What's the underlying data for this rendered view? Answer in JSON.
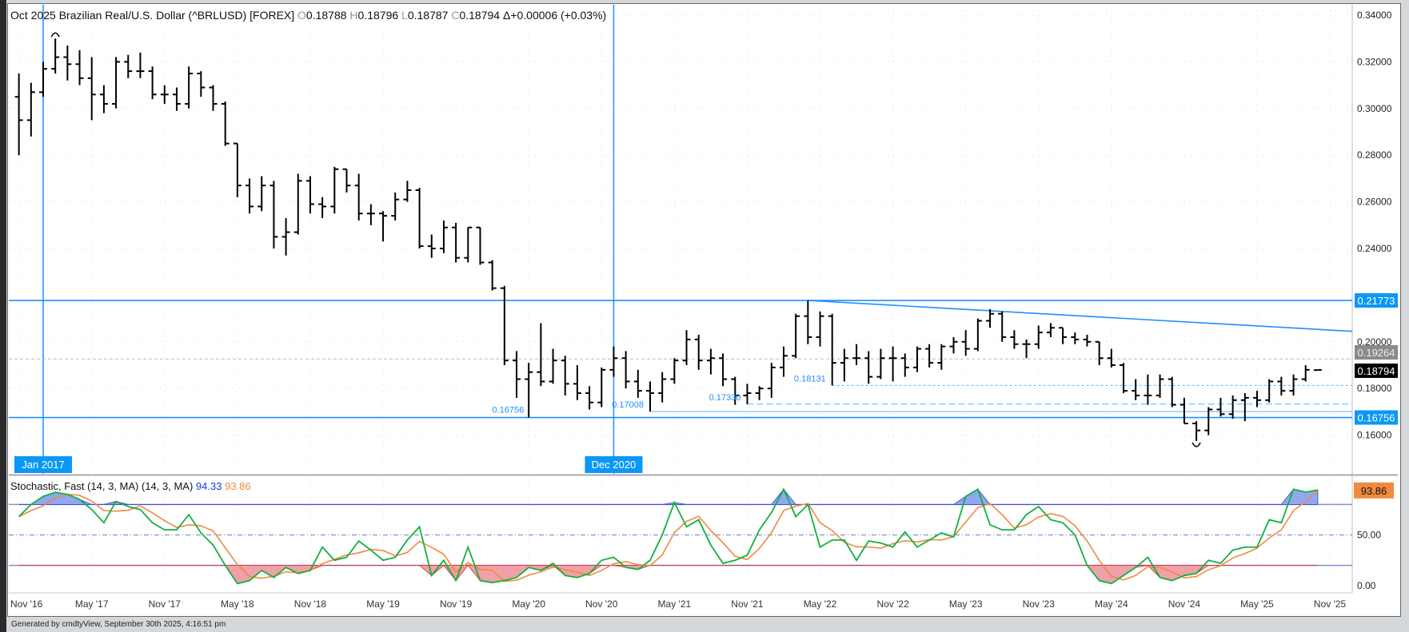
{
  "header": {
    "period": "Oct 2025",
    "instrument": "Brazilian Real/U.S. Dollar (^BRLUSD) [FOREX]",
    "o_key": "O",
    "open": "0.18788",
    "h_key": "H",
    "high": "0.18796",
    "l_key": "L",
    "low": "0.18787",
    "c_key": "C",
    "close": "0.18794",
    "change": "Δ+0.00006 (+0.03%)"
  },
  "stoch_header": {
    "label": "Stochastic, Fast (14, 3, MA) (14, 3, MA)",
    "k_value": "94.33",
    "d_value": "93.86"
  },
  "footer": "Generated by cmdtyView, September 30th 2025, 4:16:51 pm",
  "colors": {
    "blue": "#1e90ff",
    "k_line": "#13b040",
    "d_line": "#f08a40",
    "overbought_fill": "#8fa8f0",
    "oversold_fill": "#f0a0a8",
    "band": "#8c8cd0"
  },
  "chart_data": [
    {
      "type": "ohlc",
      "title": "Brazilian Real/U.S. Dollar (^BRLUSD) monthly",
      "ylim": [
        0.15,
        0.345
      ],
      "yticks": [
        "0.34000",
        "0.32000",
        "0.30000",
        "0.28000",
        "0.26000",
        "0.24000",
        "0.20000",
        "0.18000",
        "0.16000"
      ],
      "start_month": "Nov 2016",
      "x_labels": [
        {
          "m": -2,
          "t": "Nov '16"
        },
        {
          "m": 4,
          "t": "May '17"
        },
        {
          "m": 10,
          "t": "Nov '17"
        },
        {
          "m": 16,
          "t": "May '18"
        },
        {
          "m": 22,
          "t": "Nov '18"
        },
        {
          "m": 28,
          "t": "May '19"
        },
        {
          "m": 34,
          "t": "Nov '19"
        },
        {
          "m": 40,
          "t": "May '20"
        },
        {
          "m": 46,
          "t": "Nov '20"
        },
        {
          "m": 52,
          "t": "May '21"
        },
        {
          "m": 58,
          "t": "Nov '21"
        },
        {
          "m": 64,
          "t": "May '22"
        },
        {
          "m": 70,
          "t": "Nov '22"
        },
        {
          "m": 76,
          "t": "May '23"
        },
        {
          "m": 82,
          "t": "Nov '23"
        },
        {
          "m": 88,
          "t": "May '24"
        },
        {
          "m": 94,
          "t": "Nov '24"
        },
        {
          "m": 100,
          "t": "May '25"
        },
        {
          "m": 106,
          "t": "Nov '25"
        }
      ],
      "highlight_dates": [
        {
          "m": 0,
          "t": "Jan 2017"
        },
        {
          "m": 47,
          "t": "Dec 2020"
        }
      ],
      "bars": [
        [
          0.305,
          0.315,
          0.28,
          0.295
        ],
        [
          0.295,
          0.311,
          0.288,
          0.307
        ],
        [
          0.307,
          0.32,
          0.305,
          0.317
        ],
        [
          0.317,
          0.33,
          0.315,
          0.322
        ],
        [
          0.322,
          0.327,
          0.312,
          0.319
        ],
        [
          0.319,
          0.325,
          0.31,
          0.313
        ],
        [
          0.313,
          0.322,
          0.295,
          0.306
        ],
        [
          0.306,
          0.31,
          0.298,
          0.302
        ],
        [
          0.302,
          0.322,
          0.3,
          0.32
        ],
        [
          0.32,
          0.323,
          0.313,
          0.316
        ],
        [
          0.316,
          0.324,
          0.313,
          0.316
        ],
        [
          0.316,
          0.318,
          0.304,
          0.306
        ],
        [
          0.306,
          0.31,
          0.302,
          0.306
        ],
        [
          0.306,
          0.309,
          0.299,
          0.302
        ],
        [
          0.302,
          0.318,
          0.3,
          0.315
        ],
        [
          0.315,
          0.316,
          0.305,
          0.309
        ],
        [
          0.309,
          0.31,
          0.299,
          0.302
        ],
        [
          0.302,
          0.303,
          0.284,
          0.285
        ],
        [
          0.285,
          0.285,
          0.262,
          0.267
        ],
        [
          0.267,
          0.27,
          0.255,
          0.258
        ],
        [
          0.258,
          0.271,
          0.256,
          0.267
        ],
        [
          0.267,
          0.269,
          0.24,
          0.245
        ],
        [
          0.245,
          0.253,
          0.237,
          0.247
        ],
        [
          0.247,
          0.272,
          0.246,
          0.269
        ],
        [
          0.269,
          0.271,
          0.255,
          0.259
        ],
        [
          0.259,
          0.262,
          0.253,
          0.258
        ],
        [
          0.258,
          0.275,
          0.255,
          0.274
        ],
        [
          0.274,
          0.274,
          0.264,
          0.267
        ],
        [
          0.267,
          0.272,
          0.252,
          0.255
        ],
        [
          0.255,
          0.259,
          0.25,
          0.255
        ],
        [
          0.255,
          0.256,
          0.243,
          0.254
        ],
        [
          0.254,
          0.264,
          0.252,
          0.261
        ],
        [
          0.261,
          0.269,
          0.26,
          0.265
        ],
        [
          0.265,
          0.266,
          0.24,
          0.241
        ],
        [
          0.241,
          0.246,
          0.236,
          0.24
        ],
        [
          0.24,
          0.252,
          0.238,
          0.249
        ],
        [
          0.249,
          0.251,
          0.234,
          0.236
        ],
        [
          0.236,
          0.249,
          0.234,
          0.249
        ],
        [
          0.249,
          0.249,
          0.233,
          0.234
        ],
        [
          0.234,
          0.235,
          0.222,
          0.223
        ],
        [
          0.223,
          0.224,
          0.19,
          0.192
        ],
        [
          0.192,
          0.196,
          0.176,
          0.184
        ],
        [
          0.184,
          0.191,
          0.16756,
          0.187
        ],
        [
          0.187,
          0.208,
          0.181,
          0.183
        ],
        [
          0.183,
          0.197,
          0.182,
          0.192
        ],
        [
          0.192,
          0.194,
          0.177,
          0.182
        ],
        [
          0.182,
          0.19,
          0.175,
          0.178
        ],
        [
          0.178,
          0.181,
          0.171,
          0.174
        ],
        [
          0.174,
          0.189,
          0.172,
          0.188
        ],
        [
          0.188,
          0.198,
          0.185,
          0.193
        ],
        [
          0.193,
          0.196,
          0.18,
          0.183
        ],
        [
          0.183,
          0.188,
          0.176,
          0.179
        ],
        [
          0.179,
          0.183,
          0.17008,
          0.178
        ],
        [
          0.178,
          0.187,
          0.174,
          0.184
        ],
        [
          0.184,
          0.193,
          0.182,
          0.192
        ],
        [
          0.192,
          0.205,
          0.19,
          0.201
        ],
        [
          0.201,
          0.203,
          0.188,
          0.192
        ],
        [
          0.192,
          0.197,
          0.186,
          0.193
        ],
        [
          0.193,
          0.195,
          0.181,
          0.184
        ],
        [
          0.184,
          0.185,
          0.173,
          0.177
        ],
        [
          0.177,
          0.182,
          0.1733,
          0.178
        ],
        [
          0.178,
          0.181,
          0.175,
          0.18
        ],
        [
          0.18,
          0.191,
          0.176,
          0.189
        ],
        [
          0.189,
          0.198,
          0.185,
          0.194
        ],
        [
          0.194,
          0.212,
          0.193,
          0.211
        ],
        [
          0.211,
          0.21773,
          0.199,
          0.202
        ],
        [
          0.202,
          0.213,
          0.198,
          0.211
        ],
        [
          0.211,
          0.212,
          0.18131,
          0.191
        ],
        [
          0.191,
          0.197,
          0.183,
          0.193
        ],
        [
          0.193,
          0.199,
          0.19,
          0.193
        ],
        [
          0.193,
          0.196,
          0.182,
          0.185
        ],
        [
          0.185,
          0.197,
          0.184,
          0.193
        ],
        [
          0.193,
          0.198,
          0.183,
          0.193
        ],
        [
          0.193,
          0.195,
          0.185,
          0.189
        ],
        [
          0.189,
          0.198,
          0.187,
          0.197
        ],
        [
          0.197,
          0.199,
          0.189,
          0.191
        ],
        [
          0.191,
          0.199,
          0.188,
          0.198
        ],
        [
          0.198,
          0.202,
          0.195,
          0.2
        ],
        [
          0.2,
          0.205,
          0.194,
          0.197
        ],
        [
          0.197,
          0.21,
          0.196,
          0.209
        ],
        [
          0.209,
          0.214,
          0.206,
          0.212
        ],
        [
          0.212,
          0.213,
          0.2,
          0.202
        ],
        [
          0.202,
          0.205,
          0.197,
          0.199
        ],
        [
          0.199,
          0.201,
          0.193,
          0.199
        ],
        [
          0.199,
          0.207,
          0.197,
          0.204
        ],
        [
          0.204,
          0.208,
          0.202,
          0.206
        ],
        [
          0.206,
          0.206,
          0.199,
          0.202
        ],
        [
          0.202,
          0.204,
          0.199,
          0.201
        ],
        [
          0.201,
          0.203,
          0.198,
          0.2
        ],
        [
          0.2,
          0.2,
          0.19,
          0.193
        ],
        [
          0.193,
          0.197,
          0.189,
          0.19
        ],
        [
          0.19,
          0.191,
          0.178,
          0.179
        ],
        [
          0.179,
          0.184,
          0.175,
          0.177
        ],
        [
          0.177,
          0.186,
          0.173,
          0.177
        ],
        [
          0.177,
          0.186,
          0.176,
          0.184
        ],
        [
          0.184,
          0.185,
          0.172,
          0.173
        ],
        [
          0.173,
          0.176,
          0.165,
          0.165
        ],
        [
          0.165,
          0.166,
          0.1575,
          0.162
        ],
        [
          0.162,
          0.172,
          0.16,
          0.171
        ],
        [
          0.171,
          0.176,
          0.168,
          0.169
        ],
        [
          0.169,
          0.177,
          0.167,
          0.175
        ],
        [
          0.175,
          0.178,
          0.166,
          0.176
        ],
        [
          0.176,
          0.179,
          0.172,
          0.175
        ],
        [
          0.175,
          0.184,
          0.174,
          0.183
        ],
        [
          0.183,
          0.185,
          0.177,
          0.179
        ],
        [
          0.179,
          0.186,
          0.177,
          0.184
        ],
        [
          0.184,
          0.19,
          0.183,
          0.188
        ],
        [
          0.18788,
          0.18796,
          0.18787,
          0.18794
        ]
      ],
      "swing_markers": [
        {
          "m": 1,
          "type": "high"
        },
        {
          "m": 95,
          "type": "low"
        }
      ],
      "horizontal_lines": [
        {
          "value": 0.21773,
          "label": "0.21773",
          "style": "solid"
        },
        {
          "value": 0.16756,
          "label": "0.16756",
          "style": "solid"
        }
      ],
      "support_lines": [
        {
          "value": 0.17008,
          "from_m": 50,
          "label": "0.17008",
          "style": "thin"
        },
        {
          "value": 0.1733,
          "from_m": 58,
          "label": "0.17330",
          "style": "dashed"
        },
        {
          "value": 0.18131,
          "from_m": 65,
          "label": "0.18131",
          "style": "dotted"
        }
      ],
      "low_label": {
        "m": 40,
        "value": 0.16756,
        "label": "0.16756"
      },
      "trendline": {
        "from": {
          "m": 63,
          "value": 0.21773
        },
        "to": {
          "m": 110.5,
          "value": 0.2037
        }
      },
      "reference_line": {
        "value": 0.19264,
        "label": "0.19264"
      },
      "last_price": {
        "value": 0.18794,
        "label": "0.18794"
      }
    },
    {
      "type": "line",
      "title": "Stochastic, Fast (14, 3, MA)",
      "ylim": [
        0,
        100
      ],
      "levels": [
        80,
        50,
        20
      ],
      "yticks": [
        "50.00",
        "0.00"
      ],
      "last_d_label": "93.86",
      "k": [
        68,
        80,
        88,
        92,
        90,
        85,
        75,
        62,
        83,
        78,
        75,
        62,
        55,
        55,
        70,
        52,
        40,
        20,
        2,
        5,
        15,
        8,
        18,
        12,
        15,
        38,
        25,
        28,
        44,
        35,
        25,
        28,
        45,
        58,
        10,
        25,
        5,
        38,
        5,
        3,
        5,
        8,
        18,
        15,
        22,
        10,
        8,
        12,
        25,
        28,
        18,
        16,
        25,
        50,
        82,
        58,
        65,
        40,
        22,
        25,
        30,
        55,
        72,
        95,
        68,
        80,
        38,
        45,
        45,
        25,
        44,
        42,
        38,
        53,
        38,
        45,
        52,
        48,
        88,
        95,
        60,
        55,
        55,
        70,
        78,
        65,
        62,
        50,
        20,
        5,
        2,
        10,
        18,
        28,
        8,
        5,
        10,
        12,
        25,
        22,
        35,
        38,
        38,
        65,
        62,
        95,
        92.25,
        94.33
      ]
    }
  ]
}
